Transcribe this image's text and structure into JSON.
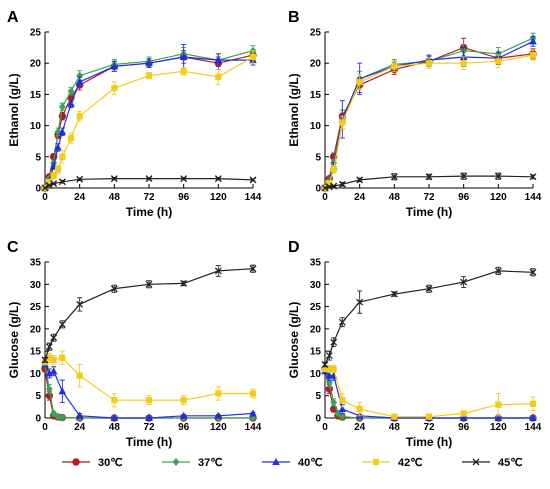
{
  "legend": {
    "placement": "bottom",
    "entries": [
      {
        "label": "30℃",
        "color": "#b51c1c",
        "marker": "circle"
      },
      {
        "label": "37℃",
        "color": "#3aa35b",
        "marker": "diamond"
      },
      {
        "label": "40℃",
        "color": "#1f2fe0",
        "marker": "triangle"
      },
      {
        "label": "42℃",
        "color": "#f2cc16",
        "marker": "square"
      },
      {
        "label": "45℃",
        "color": "#222222",
        "marker": "cross"
      }
    ]
  },
  "chart_data": [
    {
      "panel": "A",
      "type": "line",
      "xlabel": "Time (h)",
      "ylabel": "Ethanol (g/L)",
      "xlim": [
        0,
        144
      ],
      "ylim": [
        0,
        25
      ],
      "xticks": [
        0,
        24,
        48,
        72,
        96,
        120,
        144
      ],
      "yticks": [
        0,
        5,
        10,
        15,
        20,
        25
      ],
      "grid": false,
      "series": [
        {
          "name": "30℃",
          "x": [
            0,
            3,
            6,
            9,
            12,
            18,
            24,
            48,
            72,
            96,
            120,
            144
          ],
          "y": [
            0,
            1.8,
            5,
            8.5,
            11.5,
            14.5,
            16.5,
            19.5,
            20,
            21,
            20,
            21.3
          ],
          "err": [
            0,
            0.3,
            0.5,
            0.6,
            0.6,
            0.6,
            0.8,
            0.8,
            0.7,
            1,
            1,
            0.8
          ]
        },
        {
          "name": "37℃",
          "x": [
            0,
            3,
            6,
            9,
            12,
            18,
            24,
            48,
            72,
            96,
            120,
            144
          ],
          "y": [
            0,
            1.5,
            4,
            9,
            13,
            15.5,
            18,
            19.8,
            20.3,
            21.5,
            20.5,
            22
          ],
          "err": [
            0,
            0.3,
            0.5,
            0.6,
            0.6,
            0.6,
            0.8,
            0.8,
            0.7,
            1,
            1,
            0.8
          ]
        },
        {
          "name": "40℃",
          "x": [
            0,
            3,
            6,
            9,
            12,
            18,
            24,
            48,
            72,
            96,
            120,
            144
          ],
          "y": [
            0,
            1.2,
            3.5,
            6.5,
            9,
            13.5,
            17,
            19.5,
            20,
            21,
            20.5,
            20.5
          ],
          "err": [
            0,
            0.3,
            0.5,
            0.6,
            0.6,
            0.6,
            0.8,
            0.8,
            0.7,
            2,
            1,
            0.8
          ]
        },
        {
          "name": "42℃",
          "x": [
            0,
            3,
            6,
            9,
            12,
            18,
            24,
            48,
            72,
            96,
            120,
            144
          ],
          "y": [
            0,
            1,
            2,
            3,
            5,
            8,
            11.5,
            16,
            18,
            18.7,
            17.8,
            21
          ],
          "err": [
            0,
            0.3,
            0.5,
            0.6,
            1,
            0.8,
            0.8,
            1,
            0.5,
            0.6,
            1.2,
            1
          ]
        },
        {
          "name": "45℃",
          "x": [
            0,
            3,
            6,
            12,
            24,
            48,
            72,
            96,
            120,
            144
          ],
          "y": [
            0,
            0.4,
            0.7,
            1,
            1.4,
            1.5,
            1.5,
            1.5,
            1.5,
            1.3
          ],
          "err": [
            0,
            0.1,
            0.1,
            0.2,
            0.2,
            0.2,
            0.2,
            0.2,
            0.2,
            0.2
          ]
        }
      ]
    },
    {
      "panel": "B",
      "type": "line",
      "xlabel": "Time (h)",
      "ylabel": "Ethanol (g/L)",
      "xlim": [
        0,
        144
      ],
      "ylim": [
        0,
        25
      ],
      "xticks": [
        0,
        24,
        48,
        72,
        96,
        120,
        144
      ],
      "yticks": [
        0,
        5,
        10,
        15,
        20,
        25
      ],
      "grid": false,
      "series": [
        {
          "name": "30℃",
          "x": [
            0,
            3,
            6,
            12,
            24,
            48,
            72,
            96,
            120,
            144
          ],
          "y": [
            0,
            1.5,
            5,
            11.5,
            16.5,
            19,
            20.3,
            22.5,
            20.8,
            21.5
          ],
          "err": [
            0,
            0.3,
            0.6,
            1,
            1.2,
            0.8,
            0.8,
            1.5,
            1,
            0.8
          ]
        },
        {
          "name": "37℃",
          "x": [
            0,
            3,
            6,
            12,
            24,
            48,
            72,
            96,
            120,
            144
          ],
          "y": [
            0,
            1.2,
            4,
            11,
            17.5,
            19.8,
            20.3,
            22,
            21.5,
            24
          ],
          "err": [
            0,
            0.3,
            0.6,
            1.5,
            1.2,
            0.8,
            0.8,
            1,
            1,
            0.8
          ]
        },
        {
          "name": "40℃",
          "x": [
            0,
            3,
            6,
            12,
            24,
            48,
            72,
            96,
            120,
            144
          ],
          "y": [
            0,
            1,
            3.5,
            11,
            17.5,
            19.5,
            20.5,
            21,
            20.8,
            23.5
          ],
          "err": [
            0,
            0.3,
            0.6,
            3,
            2.5,
            0.8,
            0.8,
            1.5,
            1,
            0.8
          ]
        },
        {
          "name": "42℃",
          "x": [
            0,
            3,
            6,
            12,
            24,
            48,
            72,
            96,
            120,
            144
          ],
          "y": [
            0,
            0.8,
            3,
            10.5,
            17,
            19.5,
            20,
            20,
            20.3,
            21.3
          ],
          "err": [
            0,
            0.3,
            0.6,
            1,
            1.2,
            0.8,
            0.8,
            1,
            1,
            0.8
          ]
        },
        {
          "name": "45℃",
          "x": [
            0,
            3,
            6,
            12,
            24,
            48,
            72,
            96,
            120,
            144
          ],
          "y": [
            0,
            0.2,
            0.3,
            0.6,
            1.3,
            1.8,
            1.8,
            1.9,
            1.9,
            1.8
          ],
          "err": [
            0,
            0.1,
            0.1,
            0.3,
            0.3,
            0.5,
            0.4,
            0.5,
            0.5,
            0.3
          ]
        }
      ]
    },
    {
      "panel": "C",
      "type": "line",
      "xlabel": "Time (h)",
      "ylabel": "Glucose (g/L)",
      "xlim": [
        0,
        144
      ],
      "ylim": [
        0,
        35
      ],
      "xticks": [
        0,
        24,
        48,
        72,
        96,
        120,
        144
      ],
      "yticks": [
        0,
        5,
        10,
        15,
        20,
        25,
        30,
        35
      ],
      "grid": false,
      "series": [
        {
          "name": "30℃",
          "x": [
            0,
            3,
            6,
            9,
            12,
            24,
            48,
            72,
            96,
            120,
            144
          ],
          "y": [
            11,
            5,
            0.5,
            0.2,
            0.1,
            0,
            0,
            0,
            0,
            0,
            0
          ],
          "err": [
            0.5,
            1,
            0.3,
            0.1,
            0.1,
            0,
            0,
            0,
            0,
            0,
            0
          ]
        },
        {
          "name": "37℃",
          "x": [
            0,
            3,
            6,
            9,
            12,
            24,
            48,
            72,
            96,
            120,
            144
          ],
          "y": [
            12,
            6.5,
            1,
            0.3,
            0.1,
            0,
            0,
            0,
            0,
            0,
            0
          ],
          "err": [
            0.5,
            1,
            0.5,
            0.2,
            0.1,
            0,
            0,
            0,
            0,
            0,
            0
          ]
        },
        {
          "name": "40℃",
          "x": [
            0,
            3,
            6,
            12,
            24,
            48,
            72,
            96,
            120,
            144
          ],
          "y": [
            12,
            10,
            10.5,
            6,
            0.5,
            0,
            0,
            0.5,
            0.5,
            1
          ],
          "err": [
            0.5,
            1,
            1,
            2.5,
            0.5,
            0,
            0,
            0.3,
            0.3,
            0.3
          ]
        },
        {
          "name": "42℃",
          "x": [
            0,
            3,
            6,
            12,
            24,
            48,
            72,
            96,
            120,
            144
          ],
          "y": [
            12.5,
            13.5,
            13,
            13.5,
            9.5,
            4,
            4,
            4,
            5.5,
            5.5
          ],
          "err": [
            0.5,
            1,
            1,
            1.5,
            2.5,
            1.5,
            1,
            1,
            1.5,
            1
          ]
        },
        {
          "name": "45℃",
          "x": [
            0,
            3,
            6,
            12,
            24,
            48,
            72,
            96,
            120,
            144
          ],
          "y": [
            13,
            16,
            18,
            21,
            25.5,
            29,
            30,
            30.2,
            33,
            33.5
          ],
          "err": [
            0.5,
            0.8,
            0.8,
            0.8,
            1.5,
            0.8,
            0.8,
            0.5,
            1.2,
            0.8
          ]
        }
      ]
    },
    {
      "panel": "D",
      "type": "line",
      "xlabel": "Time (h)",
      "ylabel": "Glucose (g/L)",
      "xlim": [
        0,
        144
      ],
      "ylim": [
        0,
        35
      ],
      "xticks": [
        0,
        24,
        48,
        72,
        96,
        120,
        144
      ],
      "yticks": [
        0,
        5,
        10,
        15,
        20,
        25,
        30,
        35
      ],
      "grid": false,
      "series": [
        {
          "name": "30℃",
          "x": [
            0,
            3,
            6,
            9,
            12,
            24,
            48,
            72,
            96,
            120,
            144
          ],
          "y": [
            11,
            6.5,
            2,
            0.5,
            0.2,
            0,
            0,
            0,
            0,
            0,
            0
          ],
          "err": [
            0.5,
            1,
            0.5,
            0.2,
            0.1,
            0,
            0,
            0,
            0,
            0,
            0
          ]
        },
        {
          "name": "37℃",
          "x": [
            0,
            3,
            6,
            9,
            12,
            24,
            48,
            72,
            96,
            120,
            144
          ],
          "y": [
            11,
            8,
            3.5,
            1,
            0.3,
            0,
            0,
            0,
            0,
            0,
            0
          ],
          "err": [
            0.5,
            1,
            0.8,
            0.3,
            0.1,
            0,
            0,
            0,
            0,
            0,
            0
          ]
        },
        {
          "name": "40℃",
          "x": [
            0,
            3,
            6,
            12,
            24,
            48,
            72,
            96,
            120,
            144
          ],
          "y": [
            10.5,
            9.5,
            9.5,
            2,
            0.5,
            0,
            0,
            0,
            0,
            0
          ],
          "err": [
            0.5,
            1,
            1,
            1,
            0.3,
            0,
            0,
            0,
            0,
            0
          ]
        },
        {
          "name": "42℃",
          "x": [
            0,
            3,
            6,
            12,
            24,
            48,
            72,
            96,
            120,
            144
          ],
          "y": [
            11,
            11,
            11,
            4,
            2,
            0.3,
            0.3,
            1,
            3,
            3.2
          ],
          "err": [
            0.5,
            0.8,
            0.8,
            1.5,
            1.5,
            0.3,
            0.3,
            0.5,
            2.5,
            1.5
          ]
        },
        {
          "name": "45℃",
          "x": [
            0,
            3,
            6,
            12,
            24,
            48,
            72,
            96,
            120,
            144
          ],
          "y": [
            12,
            14,
            17,
            21.5,
            26,
            27.8,
            29,
            30.5,
            33,
            32.7
          ],
          "err": [
            0.5,
            1,
            1,
            1,
            2.5,
            0.5,
            0.8,
            1.2,
            0.8,
            0.8
          ]
        }
      ]
    }
  ]
}
